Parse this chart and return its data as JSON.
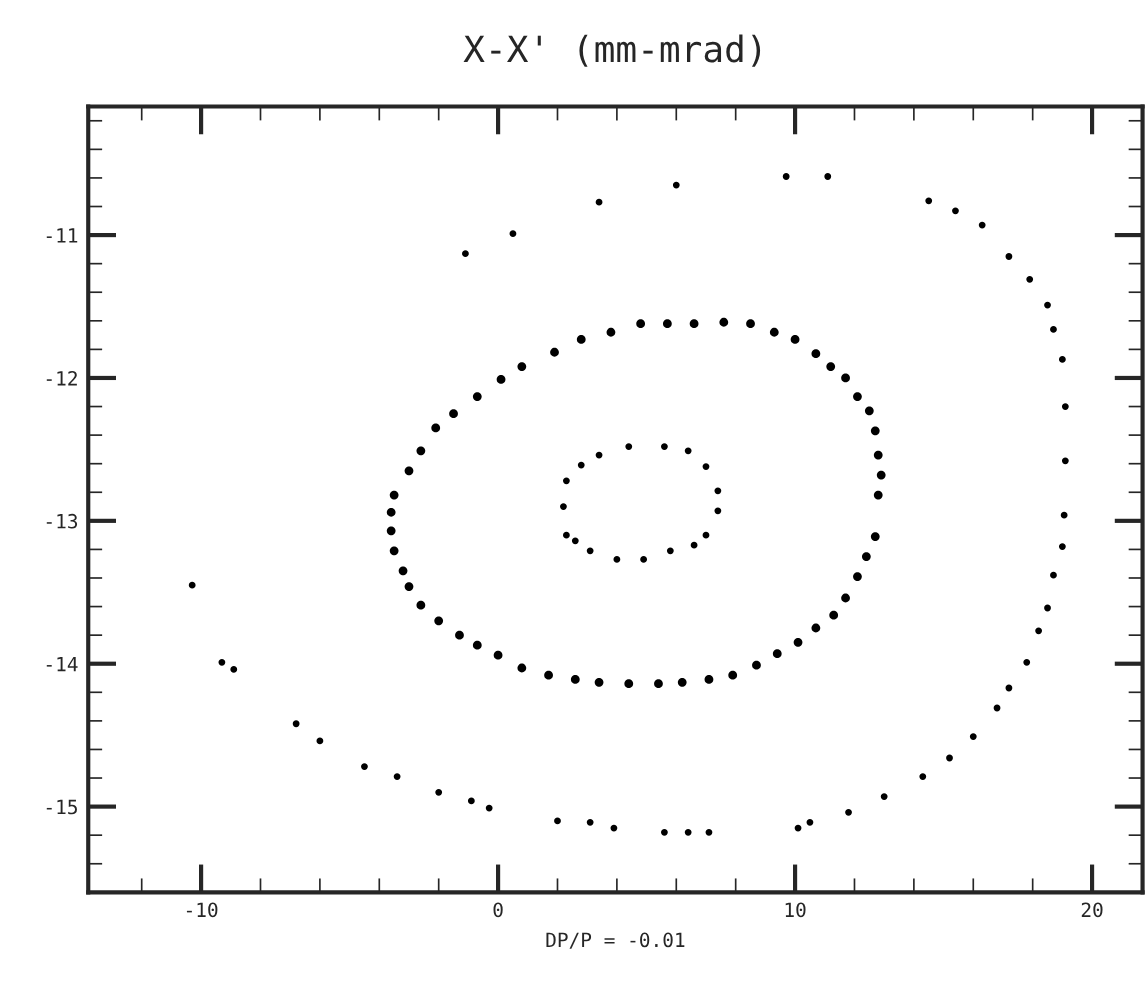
{
  "chart_data": {
    "type": "scatter",
    "title": "X-X' (mm-mrad)",
    "xlabel": "DP/P = -0.01",
    "xlim": [
      -13.8,
      21.7
    ],
    "ylim": [
      -15.6,
      -10.1
    ],
    "xticks": [
      -10,
      0,
      10,
      20
    ],
    "yticks": [
      -15,
      -14,
      -13,
      -12,
      -11
    ],
    "grid": false,
    "legend": false,
    "marker": "circle",
    "series": [
      {
        "color": "#000000",
        "x": [
          2.2,
          2.3,
          2.8,
          3.4,
          4.4,
          5.6,
          6.4,
          7.0,
          7.4,
          7.4,
          7.0,
          6.6,
          5.8,
          4.9,
          4.0,
          3.1,
          2.6,
          2.3
        ],
        "values": [
          -12.9,
          -12.72,
          -12.61,
          -12.54,
          -12.48,
          -12.48,
          -12.51,
          -12.62,
          -12.79,
          -12.93,
          -13.1,
          -13.17,
          -13.21,
          -13.27,
          -13.27,
          -13.21,
          -13.14,
          -13.1
        ]
      },
      {
        "color": "#000000",
        "x": [
          -3.6,
          -3.5,
          -3.0,
          -2.6,
          -2.1,
          -1.5,
          -0.7,
          0.1,
          0.8,
          1.9,
          2.8,
          3.8,
          4.8,
          5.7,
          6.6,
          7.6,
          8.5,
          9.3,
          10.0,
          10.7,
          11.2,
          11.7,
          12.1,
          12.5,
          12.7,
          12.8,
          12.9,
          12.8,
          12.7,
          12.4,
          12.1,
          11.7,
          11.3,
          10.7,
          10.1,
          9.4,
          8.7,
          7.9,
          7.1,
          6.2,
          5.4,
          4.4,
          3.4,
          2.6,
          1.7,
          0.8,
          0.0,
          -0.7,
          -1.3,
          -2.0,
          -2.6,
          -3.0,
          -3.2,
          -3.5,
          -3.6
        ],
        "values": [
          -12.94,
          -12.82,
          -12.65,
          -12.51,
          -12.35,
          -12.25,
          -12.13,
          -12.01,
          -11.92,
          -11.82,
          -11.73,
          -11.68,
          -11.62,
          -11.62,
          -11.62,
          -11.61,
          -11.62,
          -11.68,
          -11.73,
          -11.83,
          -11.92,
          -12.0,
          -12.13,
          -12.23,
          -12.37,
          -12.54,
          -12.68,
          -12.82,
          -13.11,
          -13.25,
          -13.39,
          -13.54,
          -13.66,
          -13.75,
          -13.85,
          -13.93,
          -14.01,
          -14.08,
          -14.11,
          -14.13,
          -14.14,
          -14.14,
          -14.13,
          -14.11,
          -14.08,
          -14.03,
          -13.94,
          -13.87,
          -13.8,
          -13.7,
          -13.59,
          -13.46,
          -13.35,
          -13.21,
          -13.07
        ]
      },
      {
        "color": "#000000",
        "x": [
          -1.1,
          0.5,
          3.4,
          6.0,
          9.7,
          11.1,
          14.5,
          15.4,
          16.3,
          17.2,
          17.9,
          18.5,
          18.7,
          19.0,
          19.1,
          19.1,
          19.06,
          19.0,
          18.7,
          18.5,
          18.2,
          17.8,
          17.2,
          16.8,
          16.0,
          15.2,
          14.3,
          13.0,
          11.8,
          10.5,
          10.1,
          7.1,
          6.4,
          5.6,
          3.9,
          3.1,
          2.0,
          -0.3,
          -0.9,
          -2.0,
          -3.4,
          -4.5,
          -6.0,
          -6.8,
          -8.9,
          -9.3,
          -10.3
        ],
        "values": [
          -11.13,
          -10.99,
          -10.77,
          -10.65,
          -10.59,
          -10.59,
          -10.76,
          -10.83,
          -10.93,
          -11.15,
          -11.31,
          -11.49,
          -11.66,
          -11.87,
          -12.2,
          -12.58,
          -12.96,
          -13.18,
          -13.38,
          -13.61,
          -13.77,
          -13.99,
          -14.17,
          -14.31,
          -14.51,
          -14.66,
          -14.79,
          -14.93,
          -15.04,
          -15.11,
          -15.15,
          -15.18,
          -15.18,
          -15.18,
          -15.15,
          -15.11,
          -15.1,
          -15.01,
          -14.96,
          -14.9,
          -14.79,
          -14.72,
          -14.54,
          -14.42,
          -14.04,
          -13.99,
          -13.45
        ]
      }
    ]
  }
}
